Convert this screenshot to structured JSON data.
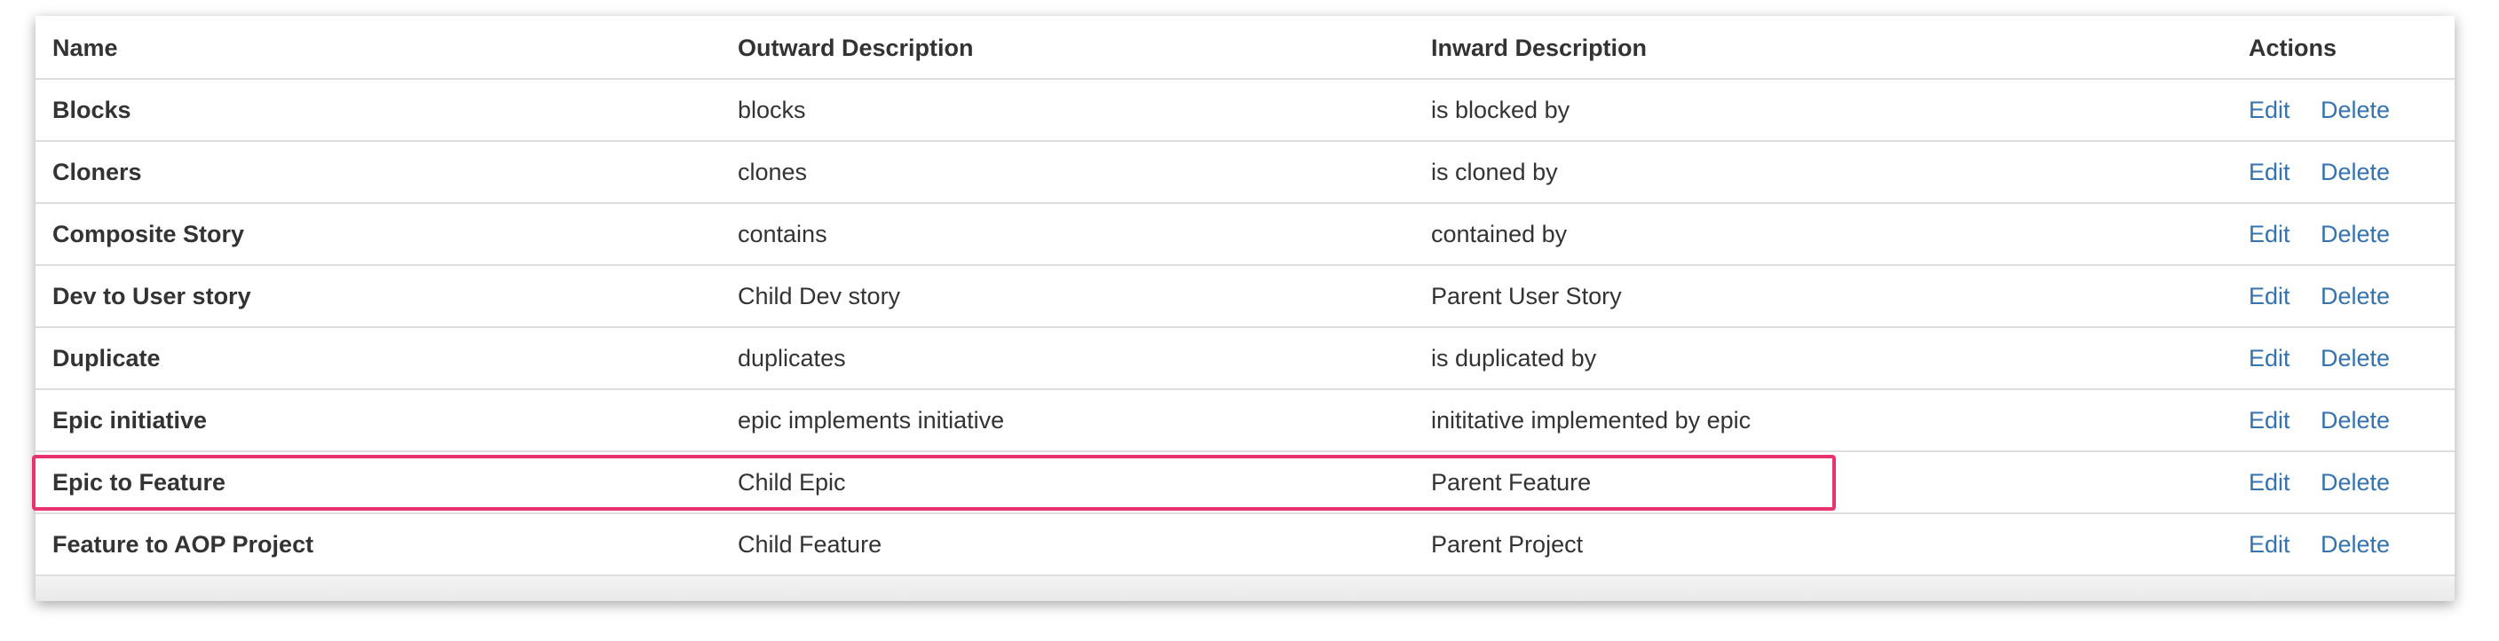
{
  "table": {
    "columns": [
      "Name",
      "Outward Description",
      "Inward Description",
      "Actions"
    ],
    "rows": [
      {
        "name": "Blocks",
        "outward": "blocks",
        "inward": "is blocked by",
        "edit": "Edit",
        "delete": "Delete"
      },
      {
        "name": "Cloners",
        "outward": "clones",
        "inward": "is cloned by",
        "edit": "Edit",
        "delete": "Delete"
      },
      {
        "name": "Composite Story",
        "outward": "contains",
        "inward": "contained by",
        "edit": "Edit",
        "delete": "Delete"
      },
      {
        "name": "Dev to User story",
        "outward": "Child Dev story",
        "inward": "Parent User Story",
        "edit": "Edit",
        "delete": "Delete"
      },
      {
        "name": "Duplicate",
        "outward": "duplicates",
        "inward": "is duplicated by",
        "edit": "Edit",
        "delete": "Delete"
      },
      {
        "name": "Epic initiative",
        "outward": "epic implements initiative",
        "inward": "inititative implemented by epic",
        "edit": "Edit",
        "delete": "Delete"
      },
      {
        "name": "Epic to Feature",
        "outward": "Child Epic",
        "inward": "Parent Feature",
        "edit": "Edit",
        "delete": "Delete"
      },
      {
        "name": "Feature to AOP Project",
        "outward": "Child Feature",
        "inward": "Parent Project",
        "edit": "Edit",
        "delete": "Delete"
      }
    ]
  }
}
